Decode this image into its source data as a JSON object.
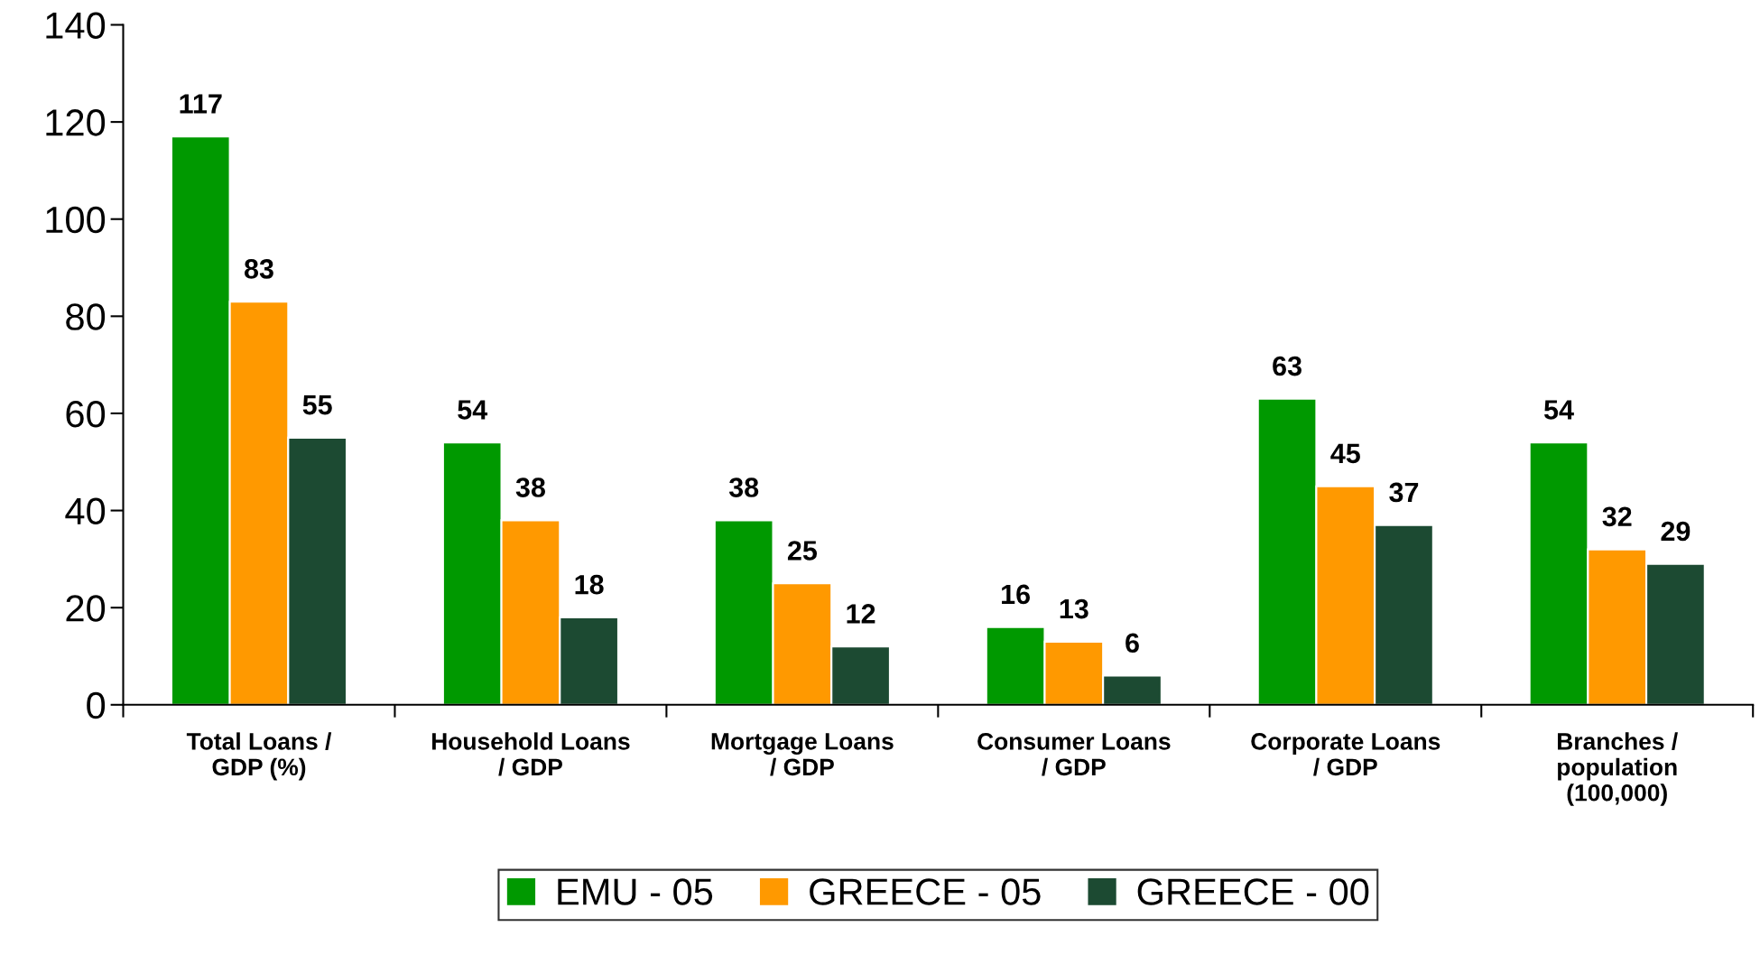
{
  "chart_data": {
    "type": "bar",
    "categories": [
      "Total Loans /\nGDP (%)",
      "Household Loans\n/ GDP",
      "Mortgage Loans\n/ GDP",
      "Consumer Loans\n/ GDP",
      "Corporate Loans\n/ GDP",
      "Branches /\npopulation\n(100,000)"
    ],
    "series": [
      {
        "name": "EMU - 05",
        "color": "#009900",
        "values": [
          117,
          54,
          38,
          16,
          63,
          54
        ]
      },
      {
        "name": "GREECE - 05",
        "color": "#ff9900",
        "values": [
          83,
          38,
          25,
          13,
          45,
          32
        ]
      },
      {
        "name": "GREECE - 00",
        "color": "#1c4a32",
        "values": [
          55,
          18,
          12,
          6,
          37,
          29
        ]
      }
    ],
    "ylim": [
      0,
      140
    ],
    "yticks": [
      0,
      20,
      40,
      60,
      80,
      100,
      120,
      140
    ],
    "data_labels": true,
    "grid": false,
    "legend": "bottom"
  }
}
